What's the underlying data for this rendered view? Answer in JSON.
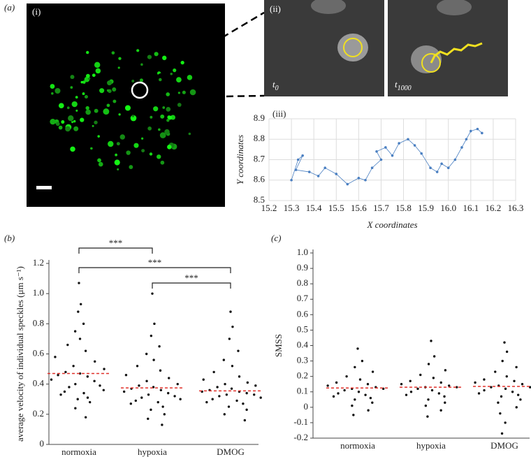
{
  "panel_a": {
    "label": "(a)",
    "image_i": "(i)",
    "image_ii": "(ii)",
    "t_start": {
      "base": "t",
      "sub": "0"
    },
    "t_end": {
      "base": "t",
      "sub": "1000"
    }
  },
  "chart_data": [
    {
      "type": "line",
      "label": "(iii)",
      "xlabel": "X coordinates",
      "ylabel": "Y coordinates",
      "color": "#4a7fc1",
      "grid": true,
      "x": [
        15.3,
        15.33,
        15.35,
        15.32,
        15.38,
        15.42,
        15.45,
        15.5,
        15.55,
        15.6,
        15.63,
        15.66,
        15.7,
        15.68,
        15.72,
        15.75,
        15.78,
        15.82,
        15.85,
        15.88,
        15.92,
        15.95,
        15.97,
        16.0,
        16.03,
        16.06,
        16.08,
        16.1,
        16.13,
        16.15
      ],
      "y": [
        8.6,
        8.7,
        8.72,
        8.65,
        8.64,
        8.62,
        8.66,
        8.63,
        8.58,
        8.61,
        8.6,
        8.66,
        8.7,
        8.74,
        8.76,
        8.72,
        8.78,
        8.8,
        8.77,
        8.73,
        8.66,
        8.64,
        8.68,
        8.66,
        8.7,
        8.76,
        8.8,
        8.84,
        8.85,
        8.83
      ],
      "xlim": [
        15.2,
        16.3
      ],
      "xticks": [
        15.2,
        15.3,
        15.4,
        15.5,
        15.6,
        15.7,
        15.8,
        15.9,
        {
          "value": 16,
          "label": "16.0"
        },
        16.1,
        16.2,
        16.3
      ],
      "ylim": [
        8.5,
        8.9
      ],
      "yticks": [
        8.5,
        8.6,
        8.7,
        8.8,
        8.9
      ]
    },
    {
      "type": "swarm",
      "label": "(b)",
      "ylabel": "average velocity of individual speckles (μm s⁻¹)",
      "color": "#111111",
      "mean_color": "#e0302a",
      "categories": [
        "normoxia",
        "hypoxia",
        "DMOG"
      ],
      "values": [
        [
          1.07,
          0.93,
          0.88,
          0.8,
          0.75,
          0.7,
          0.66,
          0.62,
          0.58,
          0.55,
          0.52,
          0.5,
          0.48,
          0.47,
          0.46,
          0.45,
          0.43,
          0.42,
          0.4,
          0.39,
          0.38,
          0.36,
          0.35,
          0.34,
          0.33,
          0.31,
          0.3,
          0.28,
          0.24,
          0.18
        ],
        [
          1.0,
          0.8,
          0.72,
          0.65,
          0.6,
          0.56,
          0.52,
          0.49,
          0.46,
          0.44,
          0.42,
          0.4,
          0.39,
          0.38,
          0.37,
          0.36,
          0.35,
          0.34,
          0.33,
          0.32,
          0.31,
          0.3,
          0.29,
          0.28,
          0.27,
          0.25,
          0.23,
          0.2,
          0.17,
          0.13
        ],
        [
          0.88,
          0.78,
          0.7,
          0.62,
          0.56,
          0.52,
          0.48,
          0.45,
          0.43,
          0.41,
          0.4,
          0.39,
          0.38,
          0.37,
          0.36,
          0.35,
          0.35,
          0.34,
          0.33,
          0.33,
          0.32,
          0.31,
          0.3,
          0.29,
          0.28,
          0.27,
          0.25,
          0.23,
          0.2,
          0.16
        ]
      ],
      "means": [
        0.47,
        0.375,
        0.355
      ],
      "annotations": [
        "***",
        "***",
        "***"
      ],
      "ylim": [
        0,
        1.2
      ],
      "yticks": [
        0,
        0.2,
        0.4,
        0.6,
        0.8,
        {
          "value": 1,
          "label": "1.0"
        },
        1.2
      ]
    },
    {
      "type": "swarm",
      "label": "(c)",
      "ylabel": "SMSS",
      "color": "#111111",
      "mean_color": "#e0302a",
      "categories": [
        "normoxia",
        "hypoxia",
        "DMOG"
      ],
      "values": [
        [
          0.38,
          0.3,
          0.26,
          0.23,
          0.2,
          0.18,
          0.16,
          0.15,
          0.14,
          0.13,
          0.12,
          0.12,
          0.11,
          0.1,
          0.09,
          0.08,
          0.07,
          0.06,
          0.05,
          0.03,
          0.01,
          -0.02,
          -0.05
        ],
        [
          0.43,
          0.33,
          0.28,
          0.24,
          0.21,
          0.19,
          0.17,
          0.16,
          0.15,
          0.14,
          0.13,
          0.13,
          0.12,
          0.11,
          0.1,
          0.09,
          0.08,
          0.07,
          0.05,
          0.03,
          0.01,
          -0.02,
          -0.06
        ],
        [
          0.42,
          0.36,
          0.3,
          0.26,
          0.23,
          0.2,
          0.18,
          0.17,
          0.16,
          0.15,
          0.14,
          0.13,
          0.13,
          0.12,
          0.11,
          0.1,
          0.09,
          0.08,
          0.07,
          0.05,
          0.03,
          0,
          -0.04,
          -0.1,
          -0.17
        ]
      ],
      "means": [
        0.125,
        0.13,
        0.135
      ],
      "ylim": [
        -0.2,
        1
      ],
      "yticks": [
        -0.2,
        -0.1,
        0,
        0.1,
        0.2,
        0.3,
        0.4,
        0.5,
        0.6,
        0.7,
        0.8,
        0.9,
        {
          "value": 1,
          "label": "1.0"
        }
      ]
    }
  ]
}
